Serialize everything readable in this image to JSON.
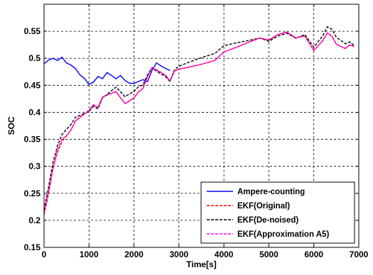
{
  "chart_data": {
    "type": "line",
    "title": "",
    "xlabel": "Time[s]",
    "ylabel": "SOC",
    "xlim": [
      0,
      7000
    ],
    "ylim": [
      0.15,
      0.6
    ],
    "xticks": [
      0,
      1000,
      2000,
      3000,
      4000,
      5000,
      6000,
      7000
    ],
    "yticks": [
      0.15,
      0.2,
      0.25,
      0.3,
      0.35,
      0.4,
      0.45,
      0.5,
      0.55
    ],
    "xtick_labels": [
      "0",
      "1000",
      "2000",
      "3000",
      "4000",
      "5000",
      "6000",
      "7000"
    ],
    "ytick_labels": [
      "0.15",
      "0.2",
      "0.25",
      "0.3",
      "0.35",
      "0.4",
      "0.45",
      "0.5",
      "0.55"
    ],
    "grid": true,
    "grid_style": "dashed",
    "legend_position": "bottom-right",
    "series": [
      {
        "name": "Ampere-counting",
        "color": "#0000ff",
        "style": "solid",
        "x": [
          0,
          100,
          200,
          300,
          400,
          500,
          600,
          700,
          800,
          900,
          1000,
          1100,
          1200,
          1300,
          1400,
          1500,
          1600,
          1700,
          1800,
          1900,
          2000,
          2100,
          2200,
          2300,
          2400,
          2500,
          2600,
          2700,
          2800
        ],
        "y": [
          0.49,
          0.495,
          0.497,
          0.492,
          0.498,
          0.488,
          0.485,
          0.48,
          0.47,
          0.465,
          0.455,
          0.46,
          0.47,
          0.465,
          0.475,
          0.468,
          0.46,
          0.465,
          0.455,
          0.45,
          0.45,
          0.455,
          0.46,
          0.458,
          0.48,
          0.495,
          0.49,
          0.485,
          0.48
        ]
      },
      {
        "name": "EKF(Original)",
        "color": "#ff0000",
        "style": "dashed",
        "x": [
          0,
          100,
          200,
          300,
          400,
          500,
          600,
          700,
          800,
          900,
          1000,
          1100,
          1200,
          1300,
          1400,
          1500,
          1600,
          1700,
          1800,
          1900,
          2000,
          2100,
          2200,
          2300,
          2400,
          2500,
          2600,
          2700,
          2800,
          2900,
          3000,
          3200,
          3400,
          3600,
          3800,
          4000,
          4200,
          4400,
          4600,
          4800,
          5000,
          5200,
          5400,
          5600,
          5800,
          6000,
          6200,
          6300,
          6400,
          6500,
          6600,
          6700,
          6800,
          6900
        ],
        "y": [
          0.21,
          0.25,
          0.3,
          0.33,
          0.35,
          0.36,
          0.37,
          0.385,
          0.39,
          0.395,
          0.4,
          0.41,
          0.405,
          0.425,
          0.43,
          0.435,
          0.44,
          0.43,
          0.42,
          0.425,
          0.43,
          0.44,
          0.445,
          0.465,
          0.48,
          0.475,
          0.47,
          0.465,
          0.455,
          0.475,
          0.48,
          0.485,
          0.49,
          0.495,
          0.5,
          0.515,
          0.52,
          0.525,
          0.53,
          0.535,
          0.53,
          0.54,
          0.545,
          0.535,
          0.54,
          0.515,
          0.535,
          0.55,
          0.545,
          0.53,
          0.525,
          0.52,
          0.525,
          0.52
        ]
      },
      {
        "name": "EKF(De-noised)",
        "color": "#000000",
        "style": "dashed",
        "x": [
          0,
          100,
          200,
          300,
          400,
          500,
          600,
          700,
          800,
          900,
          1000,
          1100,
          1200,
          1300,
          1400,
          1500,
          1600,
          1700,
          1800,
          1900,
          2000,
          2100,
          2200,
          2300,
          2400,
          2500,
          2600,
          2700,
          2800,
          2900,
          3000,
          3200,
          3400,
          3600,
          3800,
          4000,
          4200,
          4400,
          4600,
          4800,
          5000,
          5200,
          5400,
          5600,
          5800,
          6000,
          6200,
          6300,
          6400,
          6500,
          6600,
          6700,
          6800,
          6900
        ],
        "y": [
          0.22,
          0.26,
          0.305,
          0.335,
          0.355,
          0.365,
          0.375,
          0.39,
          0.395,
          0.4,
          0.405,
          0.415,
          0.41,
          0.43,
          0.435,
          0.44,
          0.445,
          0.435,
          0.425,
          0.43,
          0.435,
          0.445,
          0.45,
          0.47,
          0.485,
          0.48,
          0.475,
          0.47,
          0.46,
          0.48,
          0.485,
          0.49,
          0.495,
          0.5,
          0.505,
          0.52,
          0.525,
          0.53,
          0.535,
          0.54,
          0.535,
          0.545,
          0.55,
          0.54,
          0.545,
          0.52,
          0.54,
          0.555,
          0.55,
          0.535,
          0.53,
          0.525,
          0.53,
          0.525
        ]
      },
      {
        "name": "EKF(Approximation A5)",
        "color": "#ff00ff",
        "style": "dashed",
        "x": [
          0,
          100,
          200,
          300,
          400,
          500,
          600,
          700,
          800,
          900,
          1000,
          1100,
          1200,
          1300,
          1400,
          1500,
          1600,
          1700,
          1800,
          1900,
          2000,
          2100,
          2200,
          2300,
          2400,
          2500,
          2600,
          2700,
          2800,
          2900,
          3000,
          3200,
          3400,
          3600,
          3800,
          4000,
          4200,
          4400,
          4600,
          4800,
          5000,
          5200,
          5400,
          5600,
          5800,
          6000,
          6200,
          6300,
          6400,
          6500,
          6600,
          6700,
          6800,
          6900
        ],
        "y": [
          0.215,
          0.255,
          0.3,
          0.335,
          0.355,
          0.36,
          0.37,
          0.385,
          0.39,
          0.395,
          0.4,
          0.41,
          0.405,
          0.425,
          0.43,
          0.435,
          0.44,
          0.43,
          0.42,
          0.425,
          0.43,
          0.44,
          0.445,
          0.465,
          0.48,
          0.475,
          0.47,
          0.465,
          0.455,
          0.475,
          0.48,
          0.485,
          0.49,
          0.495,
          0.5,
          0.515,
          0.52,
          0.525,
          0.53,
          0.535,
          0.53,
          0.54,
          0.545,
          0.535,
          0.54,
          0.515,
          0.535,
          0.55,
          0.545,
          0.53,
          0.525,
          0.52,
          0.525,
          0.52
        ]
      }
    ]
  }
}
